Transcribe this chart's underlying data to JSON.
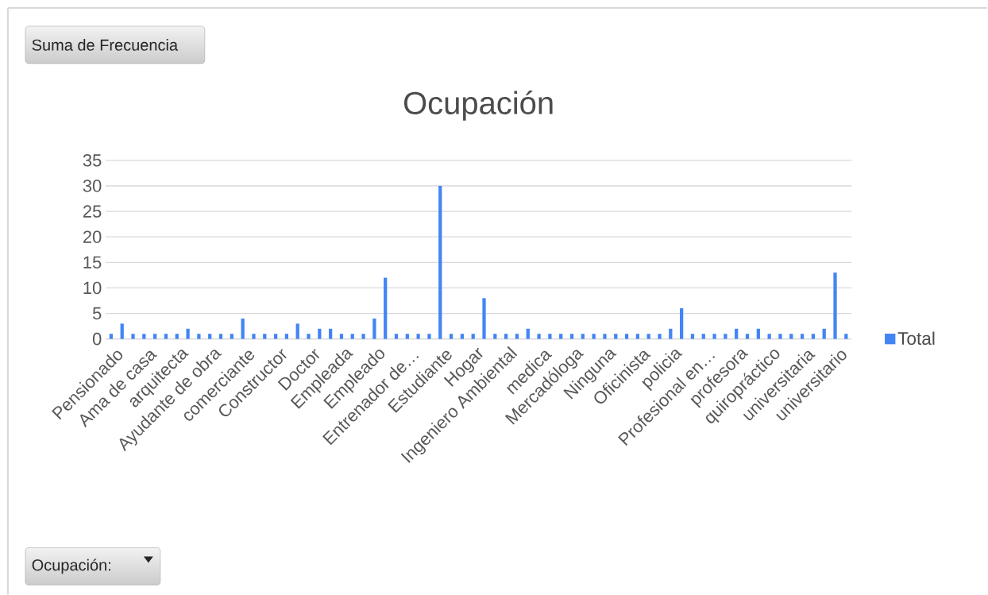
{
  "chart_data": {
    "type": "bar",
    "title": "Ocupación",
    "categories": [
      "Pensionado",
      null,
      null,
      "Ama de casa",
      null,
      null,
      "arquitecta",
      null,
      null,
      "Ayudante de obra",
      null,
      null,
      "comerciante",
      null,
      null,
      "Constructor",
      null,
      null,
      "Doctor",
      null,
      null,
      "Empleada",
      null,
      null,
      "Empleado",
      null,
      null,
      "Entrenador de…",
      null,
      null,
      "Estudiante",
      null,
      null,
      "Hogar",
      null,
      null,
      "Ingeniero Ambiental",
      null,
      null,
      "medica",
      null,
      null,
      "Mercadóloga",
      null,
      null,
      "Ninguna",
      null,
      null,
      "Oficinista",
      null,
      null,
      "policia",
      null,
      null,
      "Profesional en…",
      null,
      null,
      "profesora",
      null,
      null,
      "quiropráctico",
      null,
      null,
      "universitaria",
      null,
      null,
      "universitario",
      null
    ],
    "series": [
      {
        "name": "Total",
        "color": "#4285f4",
        "values": [
          1,
          3,
          1,
          1,
          1,
          1,
          1,
          2,
          1,
          1,
          1,
          1,
          4,
          1,
          1,
          1,
          1,
          3,
          1,
          2,
          2,
          1,
          1,
          1,
          4,
          12,
          1,
          1,
          1,
          1,
          30,
          1,
          1,
          1,
          8,
          1,
          1,
          1,
          2,
          1,
          1,
          1,
          1,
          1,
          1,
          1,
          1,
          1,
          1,
          1,
          1,
          2,
          6,
          1,
          1,
          1,
          1,
          2,
          1,
          2,
          1,
          1,
          1,
          1,
          1,
          2,
          13,
          1
        ]
      }
    ],
    "ylim": [
      0,
      35
    ],
    "yticks": [
      0,
      5,
      10,
      15,
      20,
      25,
      30,
      35
    ],
    "grid": "y",
    "legend": "right",
    "annotations": [
      "Suma de Frecuencia",
      "Ocupación:"
    ]
  }
}
